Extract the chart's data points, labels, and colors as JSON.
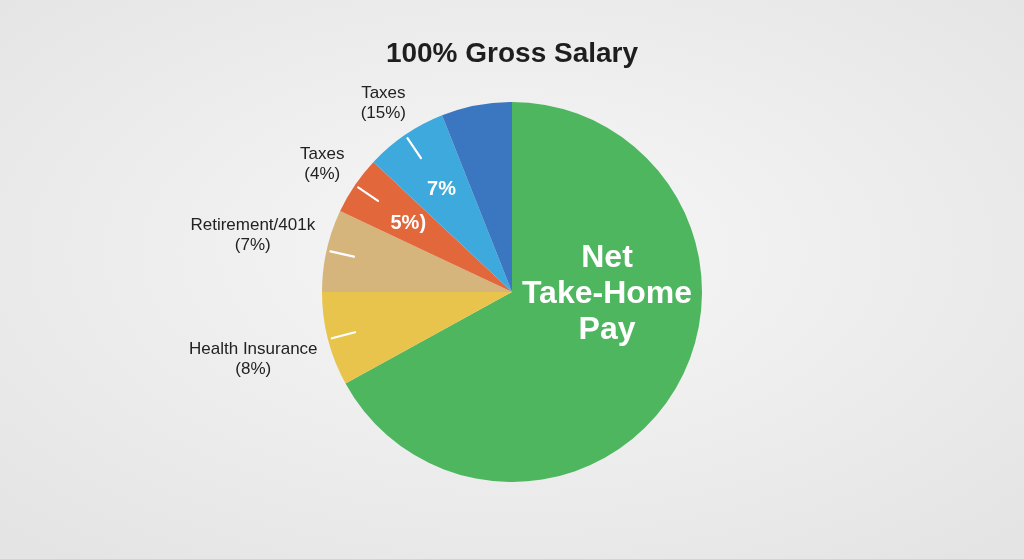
{
  "chart_data": {
    "type": "pie",
    "title": "100% Gross Salary",
    "categories": [
      "Net Take-Home Pay",
      "Health Insurance (8%)",
      "Retirement/401k (7%)",
      "Taxes (4%)",
      "Taxes (15%)",
      null
    ],
    "values": [
      67,
      8,
      7,
      5,
      7,
      6
    ],
    "colors": [
      "#4db65f",
      "#e9c44c",
      "#d6b57c",
      "#e2673b",
      "#3da9dc",
      "#3b77c0"
    ],
    "value_labels": [
      null,
      null,
      null,
      "5%)",
      "7%",
      null
    ]
  }
}
